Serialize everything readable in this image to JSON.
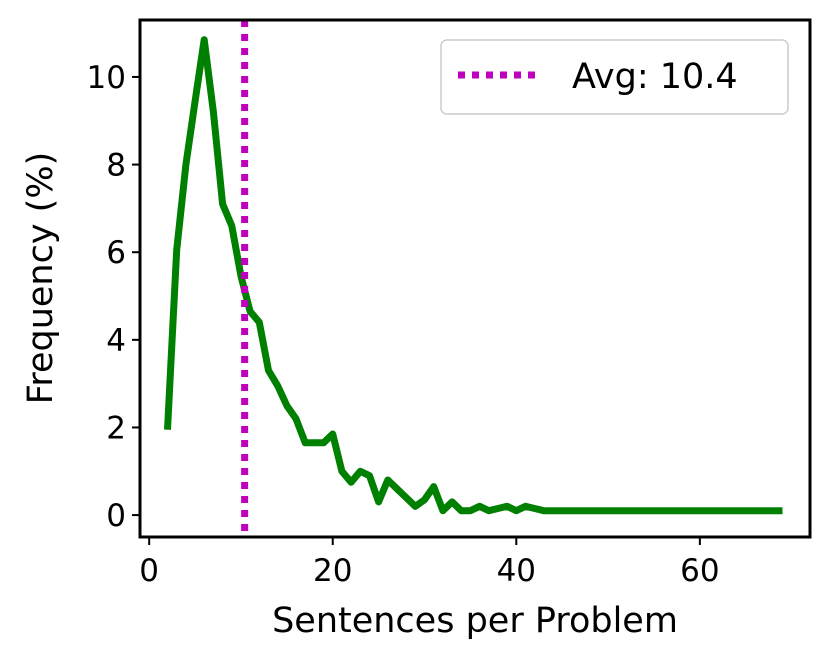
{
  "chart_data": {
    "type": "line",
    "title": "",
    "xlabel": "Sentences per Problem",
    "ylabel": "Frequency (%)",
    "xlim": [
      -1,
      72
    ],
    "ylim": [
      -0.5,
      11.3
    ],
    "xticks": [
      0,
      20,
      40,
      60
    ],
    "yticks": [
      0,
      2,
      4,
      6,
      8,
      10
    ],
    "grid": false,
    "legend_position": "top-right",
    "series": [
      {
        "color": "#008000",
        "x": [
          2,
          3,
          4,
          5,
          6,
          7,
          8,
          9,
          10,
          11,
          12,
          13,
          14,
          15,
          16,
          17,
          18,
          19,
          20,
          21,
          22,
          23,
          24,
          25,
          26,
          27,
          28,
          29,
          30,
          31,
          32,
          33,
          34,
          35,
          36,
          37,
          38,
          39,
          40,
          41,
          42,
          43,
          44,
          45,
          50,
          55,
          60,
          65,
          69
        ],
        "values": [
          1.95,
          6.05,
          8.0,
          9.45,
          10.85,
          9.2,
          7.1,
          6.6,
          5.45,
          4.65,
          4.4,
          3.3,
          2.95,
          2.5,
          2.2,
          1.65,
          1.65,
          1.65,
          1.85,
          1.0,
          0.75,
          1.0,
          0.9,
          0.3,
          0.8,
          0.6,
          0.4,
          0.2,
          0.35,
          0.65,
          0.1,
          0.3,
          0.1,
          0.1,
          0.2,
          0.1,
          0.15,
          0.2,
          0.1,
          0.2,
          0.15,
          0.1,
          0.1,
          0.1,
          0.1,
          0.1,
          0.1,
          0.1,
          0.1
        ]
      }
    ],
    "reference_line": {
      "orientation": "vertical",
      "x": 10.4,
      "color": "#bf00bf",
      "style": "dotted",
      "label": "Avg: 10.4"
    }
  }
}
